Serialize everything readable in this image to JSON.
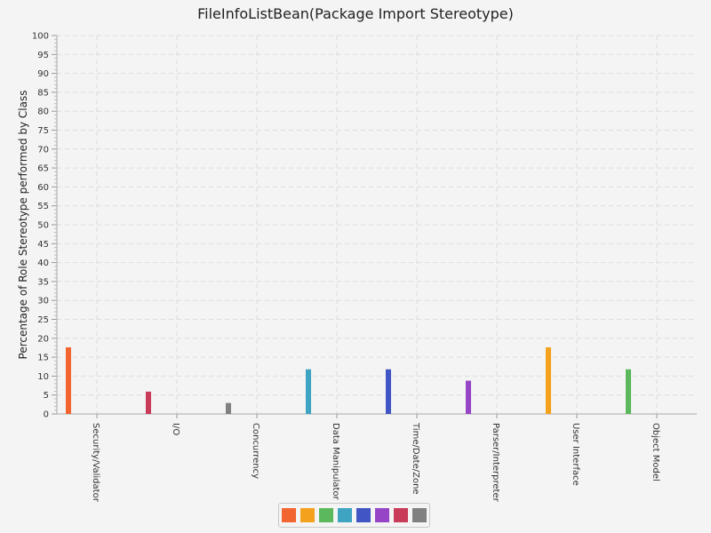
{
  "chart_data": {
    "type": "bar",
    "title": "FileInfoListBean(Package Import Stereotype)",
    "ylabel": "Percentage of Role Stereotype performed by Class",
    "xlabel": "",
    "ylim": [
      0,
      100
    ],
    "ytick_step": 5,
    "grid": true,
    "legend_position": "bottom",
    "categories": [
      "Security/Validator",
      "I/O",
      "Concurrency",
      "Data Manipulator",
      "Time/Date/Zone",
      "Parser/Interpreter",
      "User Interface",
      "Object Model"
    ],
    "series": [
      {
        "color": "#f26430",
        "values": [
          17.6,
          null,
          null,
          null,
          null,
          null,
          null,
          null
        ]
      },
      {
        "color": "#c83c5a",
        "values": [
          null,
          5.9,
          null,
          null,
          null,
          null,
          null,
          null
        ]
      },
      {
        "color": "#808080",
        "values": [
          null,
          null,
          2.9,
          null,
          null,
          null,
          null,
          null
        ]
      },
      {
        "color": "#3fa4c2",
        "values": [
          null,
          null,
          null,
          11.8,
          null,
          null,
          null,
          null
        ]
      },
      {
        "color": "#4155c4",
        "values": [
          null,
          null,
          null,
          null,
          11.8,
          null,
          null,
          null
        ]
      },
      {
        "color": "#9645c6",
        "values": [
          null,
          null,
          null,
          null,
          null,
          8.8,
          null,
          null
        ]
      },
      {
        "color": "#f4a21e",
        "values": [
          null,
          null,
          null,
          null,
          null,
          null,
          17.6,
          null
        ]
      },
      {
        "color": "#5cb85c",
        "values": [
          null,
          null,
          null,
          null,
          null,
          null,
          null,
          11.8
        ]
      }
    ],
    "legend_colors": [
      "#f26430",
      "#f4a21e",
      "#5cb85c",
      "#3fa4c2",
      "#4155c4",
      "#9645c6",
      "#c83c5a",
      "#808080"
    ]
  }
}
